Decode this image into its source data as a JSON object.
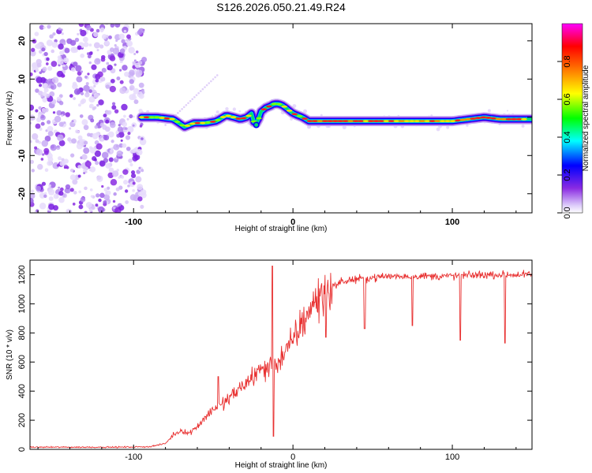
{
  "chart_data": [
    {
      "type": "heatmap",
      "title": "S126.2026.050.21.49.R24",
      "xlabel": "Height of straight line (km)",
      "ylabel": "Frequency (Hz)",
      "xlim": [
        -165,
        150
      ],
      "ylim": [
        -25,
        24.5
      ],
      "xticks": [
        -100,
        0,
        100
      ],
      "xtick_labels": [
        "-100",
        "0",
        "100"
      ],
      "yticks": [
        -20,
        -10,
        0,
        10,
        20
      ],
      "ytick_labels": [
        "-20",
        "-10",
        "0",
        "10",
        "20"
      ],
      "colorbar": {
        "label": "Normalized spectral amplitude",
        "range": [
          0,
          1
        ],
        "ticks": [
          0,
          0.2,
          0.4,
          0.6,
          0.8
        ],
        "tick_labels": [
          "0.0",
          "0.2",
          "0.4",
          "0.6",
          "0.8"
        ],
        "stops": [
          "#ffffff",
          "#dccbfa",
          "#8a2be2",
          "#0000ff",
          "#00ffff",
          "#00ff00",
          "#ffff00",
          "#ff7f00",
          "#ff0000",
          "#ff00ff"
        ]
      },
      "ridge": {
        "x": [
          -95,
          -85,
          -75,
          -68,
          -62,
          -55,
          -48,
          -42,
          -37,
          -33,
          -29,
          -26,
          -24,
          -22,
          -20,
          -17,
          -14,
          -12,
          -9,
          -6,
          -3,
          0,
          3,
          6,
          10,
          20,
          40,
          60,
          80,
          100,
          110,
          120,
          130,
          140,
          147
        ],
        "freq": [
          0,
          0,
          -0.5,
          -2.5,
          -1.5,
          -1.5,
          -1,
          0.5,
          0,
          -0.5,
          0,
          1,
          -2,
          -1,
          1.5,
          2.5,
          3,
          3.5,
          3.5,
          3,
          2,
          1,
          0.5,
          0,
          -1,
          -1,
          -1,
          -1,
          -1,
          -1,
          -0.5,
          0,
          -0.5,
          -0.5,
          -0.5
        ]
      },
      "noise_region": [
        -165,
        -95
      ]
    },
    {
      "type": "line",
      "xlabel": "Height of straight line (km)",
      "ylabel": "SNR (10 * v/v)",
      "xlim": [
        -165,
        150
      ],
      "ylim": [
        0,
        1300
      ],
      "xticks": [
        -100,
        0,
        100
      ],
      "xtick_labels": [
        "-100",
        "0",
        "100"
      ],
      "yticks": [
        0,
        200,
        400,
        600,
        800,
        1000,
        1200
      ],
      "ytick_labels": [
        "0",
        "200",
        "400",
        "600",
        "800",
        "1000",
        "1200"
      ],
      "color": "#e83030",
      "series": [
        {
          "name": "SNR",
          "x": [
            -165,
            -150,
            -130,
            -110,
            -90,
            -80,
            -75,
            -70,
            -65,
            -60,
            -55,
            -50,
            -45,
            -40,
            -35,
            -30,
            -25,
            -20,
            -15,
            -12,
            -10,
            -5,
            0,
            5,
            10,
            15,
            20,
            25,
            30,
            40,
            50,
            60,
            80,
            100,
            120,
            140,
            150
          ],
          "y": [
            15,
            15,
            15,
            15,
            18,
            40,
            100,
            130,
            110,
            160,
            220,
            280,
            300,
            350,
            400,
            450,
            500,
            550,
            560,
            580,
            600,
            650,
            750,
            850,
            950,
            1030,
            1080,
            1120,
            1150,
            1170,
            1180,
            1190,
            1190,
            1190,
            1200,
            1200,
            1200
          ]
        }
      ],
      "spikes": [
        {
          "x": -13,
          "y": 1260
        },
        {
          "x": -47,
          "y": 500
        },
        {
          "x": 45,
          "y": 830
        },
        {
          "x": 75,
          "y": 850
        },
        {
          "x": 105,
          "y": 750
        },
        {
          "x": 133,
          "y": 730
        }
      ],
      "dips": [
        {
          "x": -13,
          "y": 90
        },
        {
          "x": 20,
          "y": 770
        }
      ]
    }
  ]
}
